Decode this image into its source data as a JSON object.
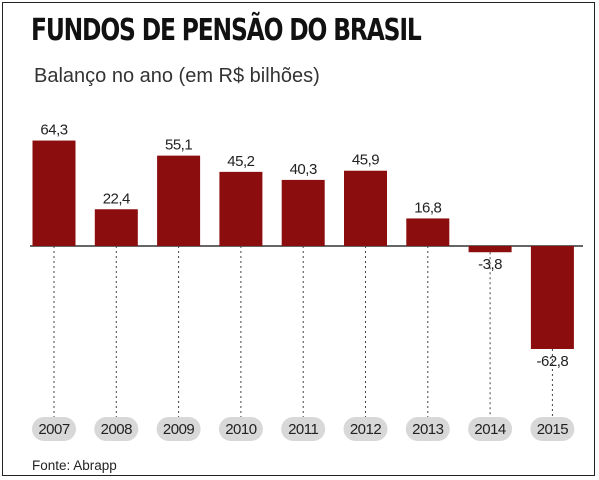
{
  "title": "FUNDOS DE PENSÃO DO BRASIL",
  "subtitle": "Balanço no ano (em R$ bilhões)",
  "source": "Fonte: Abrapp",
  "colors": {
    "bar": "#8b0d0d",
    "year_pill": "#d8d8d8",
    "axis": "#333333"
  },
  "chart_data": {
    "type": "bar",
    "categories": [
      "2007",
      "2008",
      "2009",
      "2010",
      "2011",
      "2012",
      "2013",
      "2014",
      "2015"
    ],
    "values": [
      64.3,
      22.4,
      55.1,
      45.2,
      40.3,
      45.9,
      16.8,
      -3.8,
      -62.8
    ],
    "value_labels": [
      "64,3",
      "22,4",
      "55,1",
      "45,2",
      "40,3",
      "45,9",
      "16,8",
      "-3,8",
      "-62,8"
    ],
    "title": "FUNDOS DE PENSÃO DO BRASIL",
    "subtitle": "Balanço no ano (em R$ bilhões)",
    "xlabel": "",
    "ylabel": "",
    "ylim": [
      -62.8,
      64.3
    ],
    "grid": false,
    "legend": "none"
  }
}
